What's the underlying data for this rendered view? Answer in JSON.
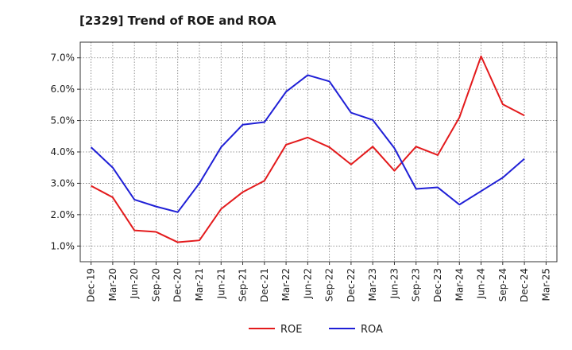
{
  "chart_data": {
    "type": "line",
    "title": "[2329]  Trend of ROE and ROA",
    "xlabel": "",
    "ylabel": "",
    "x": [
      "Dec-19",
      "Mar-20",
      "Jun-20",
      "Sep-20",
      "Dec-20",
      "Mar-21",
      "Jun-21",
      "Sep-21",
      "Dec-21",
      "Mar-22",
      "Jun-22",
      "Sep-22",
      "Dec-22",
      "Mar-23",
      "Jun-23",
      "Sep-23",
      "Dec-23",
      "Mar-24",
      "Jun-24",
      "Sep-24",
      "Dec-24",
      "Mar-25"
    ],
    "ylim": [
      0.5,
      7.5
    ],
    "yticks": [
      "1.0%",
      "2.0%",
      "3.0%",
      "4.0%",
      "5.0%",
      "6.0%",
      "7.0%"
    ],
    "yticks_values": [
      1,
      2,
      3,
      4,
      5,
      6,
      7
    ],
    "grid": true,
    "legend_position": "bottom-center",
    "series": [
      {
        "name": "ROE",
        "color": "#e31a1c",
        "values": [
          2.92,
          2.55,
          1.5,
          1.45,
          1.12,
          1.18,
          2.18,
          2.72,
          3.08,
          4.23,
          4.46,
          4.15,
          3.6,
          4.17,
          3.4,
          4.17,
          3.9,
          5.1,
          7.05,
          5.52,
          5.16,
          null
        ]
      },
      {
        "name": "ROA",
        "color": "#1f1fd6",
        "values": [
          4.15,
          3.5,
          2.48,
          2.26,
          2.08,
          3.0,
          4.15,
          4.87,
          4.95,
          5.92,
          6.45,
          6.25,
          5.25,
          5.02,
          4.12,
          2.82,
          2.87,
          2.32,
          2.75,
          3.18,
          3.78,
          null
        ]
      }
    ]
  }
}
